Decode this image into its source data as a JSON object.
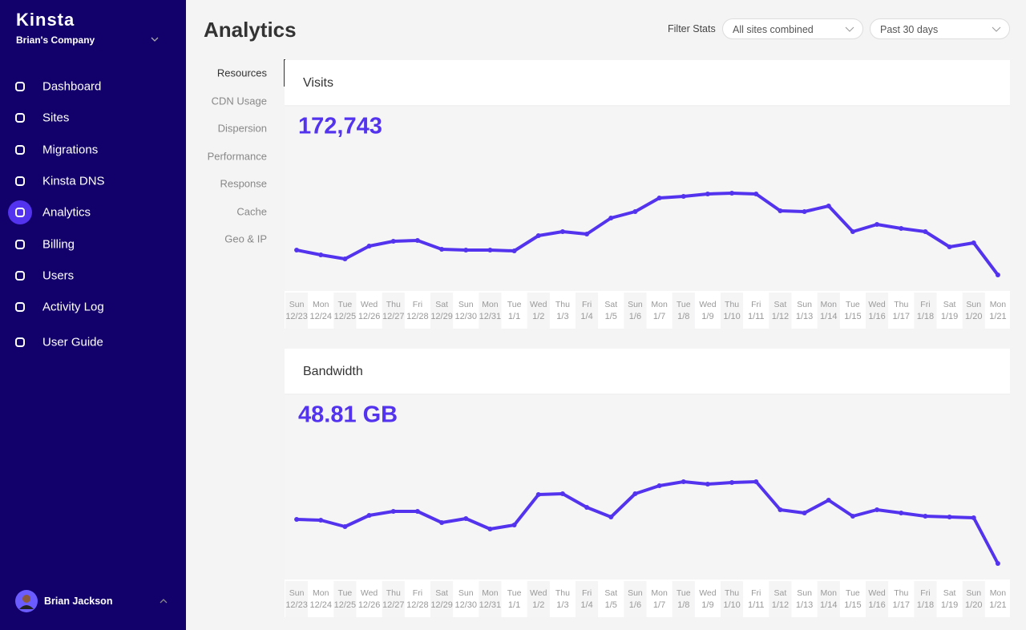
{
  "sidebar": {
    "brand": "Kinsta",
    "company": "Brian's Company",
    "nav": [
      "Dashboard",
      "Sites",
      "Migrations",
      "Kinsta DNS",
      "Analytics",
      "Billing",
      "Users",
      "Activity Log",
      "User Guide"
    ],
    "active_index": 4,
    "user": "Brian Jackson"
  },
  "header": {
    "title": "Analytics",
    "filter_label": "Filter Stats",
    "site_filter": "All sites combined",
    "period_filter": "Past 30 days"
  },
  "submenu": {
    "items": [
      "Resources",
      "CDN Usage",
      "Dispersion",
      "Performance",
      "Response",
      "Cache",
      "Geo & IP"
    ],
    "active_index": 0
  },
  "chart_data": [
    {
      "type": "line",
      "title": "Visits",
      "total": "172,743",
      "color": "#5333ed",
      "weekdays": [
        "Sun",
        "Mon",
        "Tue",
        "Wed",
        "Thu",
        "Fri",
        "Sat",
        "Sun",
        "Mon",
        "Tue",
        "Wed",
        "Thu",
        "Fri",
        "Sat",
        "Sun",
        "Mon",
        "Tue",
        "Wed",
        "Thu",
        "Fri",
        "Sat",
        "Sun",
        "Mon",
        "Tue",
        "Wed",
        "Thu",
        "Fri",
        "Sat",
        "Sun",
        "Mon"
      ],
      "categories": [
        "12/23",
        "12/24",
        "12/25",
        "12/26",
        "12/27",
        "12/28",
        "12/29",
        "12/30",
        "12/31",
        "1/1",
        "1/2",
        "1/3",
        "1/4",
        "1/5",
        "1/6",
        "1/7",
        "1/8",
        "1/9",
        "1/10",
        "1/11",
        "1/12",
        "1/13",
        "1/14",
        "1/15",
        "1/16",
        "1/17",
        "1/18",
        "1/19",
        "1/20",
        "1/21"
      ],
      "values": [
        48,
        42,
        37,
        53,
        59,
        60,
        49,
        48,
        48,
        47,
        66,
        71,
        68,
        88,
        96,
        113,
        115,
        118,
        119,
        118,
        97,
        96,
        103,
        71,
        80,
        75,
        71,
        52,
        57,
        17
      ]
    },
    {
      "type": "line",
      "title": "Bandwidth",
      "total": "48.81 GB",
      "color": "#5333ed",
      "weekdays": [
        "Sun",
        "Mon",
        "Tue",
        "Wed",
        "Thu",
        "Fri",
        "Sat",
        "Sun",
        "Mon",
        "Tue",
        "Wed",
        "Thu",
        "Fri",
        "Sat",
        "Sun",
        "Mon",
        "Tue",
        "Wed",
        "Thu",
        "Fri",
        "Sat",
        "Sun",
        "Mon",
        "Tue",
        "Wed",
        "Thu",
        "Fri",
        "Sat",
        "Sun",
        "Mon"
      ],
      "categories": [
        "12/23",
        "12/24",
        "12/25",
        "12/26",
        "12/27",
        "12/28",
        "12/29",
        "12/30",
        "12/31",
        "1/1",
        "1/2",
        "1/3",
        "1/4",
        "1/5",
        "1/6",
        "1/7",
        "1/8",
        "1/9",
        "1/10",
        "1/11",
        "1/12",
        "1/13",
        "1/14",
        "1/15",
        "1/16",
        "1/17",
        "1/18",
        "1/19",
        "1/20",
        "1/21"
      ],
      "values": [
        72,
        71,
        63,
        77,
        82,
        82,
        68,
        73,
        60,
        65,
        103,
        104,
        87,
        75,
        104,
        114,
        119,
        116,
        118,
        119,
        84,
        80,
        96,
        76,
        84,
        80,
        76,
        75,
        74,
        17
      ]
    }
  ]
}
